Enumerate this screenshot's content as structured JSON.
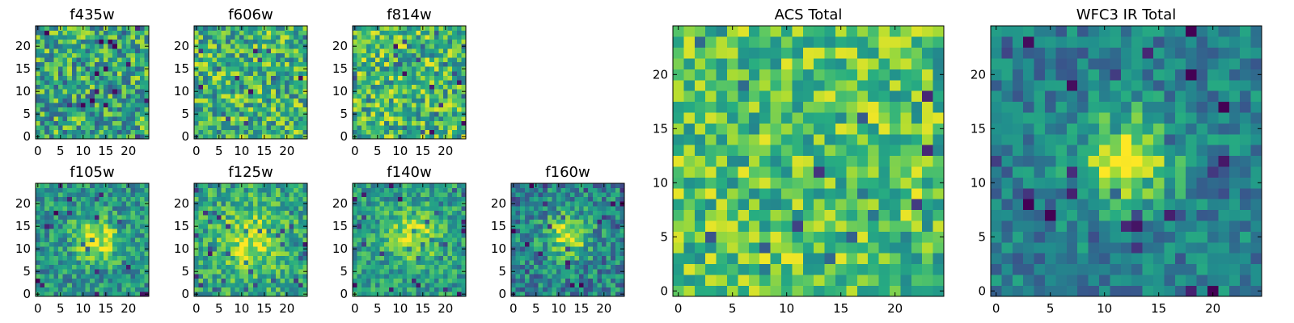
{
  "figure": {
    "background": "#ffffff"
  },
  "chart_data": [
    {
      "id": "f435w",
      "type": "heatmap",
      "title": "f435w",
      "grid_size": 25,
      "xlim": [
        -0.5,
        24.5
      ],
      "ylim": [
        -0.5,
        24.5
      ],
      "xticks": [
        0,
        5,
        10,
        15,
        20
      ],
      "yticks": [
        0,
        5,
        10,
        15,
        20
      ],
      "tick_labels": {
        "x": [
          "0",
          "5",
          "10",
          "15",
          "20"
        ],
        "y": [
          "0",
          "5",
          "10",
          "15",
          "20"
        ]
      },
      "colormap": "viridis",
      "pattern": {
        "kind": "noise",
        "base": 0.6,
        "noise": 0.32,
        "seed": 11
      }
    },
    {
      "id": "f606w",
      "type": "heatmap",
      "title": "f606w",
      "grid_size": 25,
      "xlim": [
        -0.5,
        24.5
      ],
      "ylim": [
        -0.5,
        24.5
      ],
      "xticks": [
        0,
        5,
        10,
        15,
        20
      ],
      "yticks": [
        0,
        5,
        10,
        15,
        20
      ],
      "tick_labels": {
        "x": [
          "0",
          "5",
          "10",
          "15",
          "20"
        ],
        "y": [
          "0",
          "5",
          "10",
          "15",
          "20"
        ]
      },
      "colormap": "viridis",
      "pattern": {
        "kind": "noise",
        "base": 0.66,
        "noise": 0.3,
        "seed": 23
      }
    },
    {
      "id": "f814w",
      "type": "heatmap",
      "title": "f814w",
      "grid_size": 25,
      "xlim": [
        -0.5,
        24.5
      ],
      "ylim": [
        -0.5,
        24.5
      ],
      "xticks": [
        0,
        5,
        10,
        15,
        20
      ],
      "yticks": [
        0,
        5,
        10,
        15,
        20
      ],
      "tick_labels": {
        "x": [
          "0",
          "5",
          "10",
          "15",
          "20"
        ],
        "y": [
          "0",
          "5",
          "10",
          "15",
          "20"
        ]
      },
      "colormap": "viridis",
      "pattern": {
        "kind": "noise",
        "base": 0.68,
        "noise": 0.3,
        "seed": 37
      }
    },
    {
      "id": "f105w",
      "type": "heatmap",
      "title": "f105w",
      "grid_size": 25,
      "xlim": [
        -0.5,
        24.5
      ],
      "ylim": [
        -0.5,
        24.5
      ],
      "xticks": [
        0,
        5,
        10,
        15,
        20
      ],
      "yticks": [
        0,
        5,
        10,
        15,
        20
      ],
      "tick_labels": {
        "x": [
          "0",
          "5",
          "10",
          "15",
          "20"
        ],
        "y": [
          "0",
          "5",
          "10",
          "15",
          "20"
        ]
      },
      "colormap": "viridis",
      "pattern": {
        "kind": "source",
        "base": 0.52,
        "noise": 0.22,
        "peak": 0.42,
        "center": [
          13,
          12
        ],
        "sigma": 3.5,
        "seed": 41
      }
    },
    {
      "id": "f125w",
      "type": "heatmap",
      "title": "f125w",
      "grid_size": 25,
      "xlim": [
        -0.5,
        24.5
      ],
      "ylim": [
        -0.5,
        24.5
      ],
      "xticks": [
        0,
        5,
        10,
        15,
        20
      ],
      "yticks": [
        0,
        5,
        10,
        15,
        20
      ],
      "tick_labels": {
        "x": [
          "0",
          "5",
          "10",
          "15",
          "20"
        ],
        "y": [
          "0",
          "5",
          "10",
          "15",
          "20"
        ]
      },
      "colormap": "viridis",
      "pattern": {
        "kind": "source",
        "base": 0.6,
        "noise": 0.22,
        "peak": 0.32,
        "center": [
          12,
          12
        ],
        "sigma": 4.5,
        "seed": 53
      }
    },
    {
      "id": "f140w",
      "type": "heatmap",
      "title": "f140w",
      "grid_size": 25,
      "xlim": [
        -0.5,
        24.5
      ],
      "ylim": [
        -0.5,
        24.5
      ],
      "xticks": [
        0,
        5,
        10,
        15,
        20
      ],
      "yticks": [
        0,
        5,
        10,
        15,
        20
      ],
      "tick_labels": {
        "x": [
          "0",
          "5",
          "10",
          "15",
          "20"
        ],
        "y": [
          "0",
          "5",
          "10",
          "15",
          "20"
        ]
      },
      "colormap": "viridis",
      "pattern": {
        "kind": "source",
        "base": 0.56,
        "noise": 0.2,
        "peak": 0.38,
        "center": [
          13,
          13
        ],
        "sigma": 3.8,
        "seed": 67
      }
    },
    {
      "id": "f160w",
      "type": "heatmap",
      "title": "f160w",
      "grid_size": 25,
      "xlim": [
        -0.5,
        24.5
      ],
      "ylim": [
        -0.5,
        24.5
      ],
      "xticks": [
        0,
        5,
        10,
        15,
        20
      ],
      "yticks": [
        0,
        5,
        10,
        15,
        20
      ],
      "tick_labels": {
        "x": [
          "0",
          "5",
          "10",
          "15",
          "20"
        ],
        "y": [
          "0",
          "5",
          "10",
          "15",
          "20"
        ]
      },
      "colormap": "viridis",
      "pattern": {
        "kind": "source",
        "base": 0.46,
        "noise": 0.24,
        "peak": 0.48,
        "center": [
          12,
          13
        ],
        "sigma": 3.2,
        "seed": 79
      }
    },
    {
      "id": "acs-total",
      "type": "heatmap",
      "title": "ACS Total",
      "grid_size": 25,
      "xlim": [
        -0.5,
        24.5
      ],
      "ylim": [
        -0.5,
        24.5
      ],
      "xticks": [
        0,
        5,
        10,
        15,
        20
      ],
      "yticks": [
        0,
        5,
        10,
        15,
        20
      ],
      "tick_labels": {
        "x": [
          "0",
          "5",
          "10",
          "15",
          "20"
        ],
        "y": [
          "0",
          "5",
          "10",
          "15",
          "20"
        ]
      },
      "colormap": "viridis",
      "pattern": {
        "kind": "noise",
        "base": 0.72,
        "noise": 0.26,
        "seed": 97
      }
    },
    {
      "id": "wfc3-ir-total",
      "type": "heatmap",
      "title": "WFC3 IR Total",
      "grid_size": 25,
      "xlim": [
        -0.5,
        24.5
      ],
      "ylim": [
        -0.5,
        24.5
      ],
      "xticks": [
        0,
        5,
        10,
        15,
        20
      ],
      "yticks": [
        0,
        5,
        10,
        15,
        20
      ],
      "tick_labels": {
        "x": [
          "0",
          "5",
          "10",
          "15",
          "20"
        ],
        "y": [
          "0",
          "5",
          "10",
          "15",
          "20"
        ]
      },
      "colormap": "viridis",
      "pattern": {
        "kind": "source",
        "base": 0.44,
        "noise": 0.18,
        "peak": 0.55,
        "center": [
          12,
          12
        ],
        "sigma": 3.0,
        "seed": 101
      }
    }
  ]
}
